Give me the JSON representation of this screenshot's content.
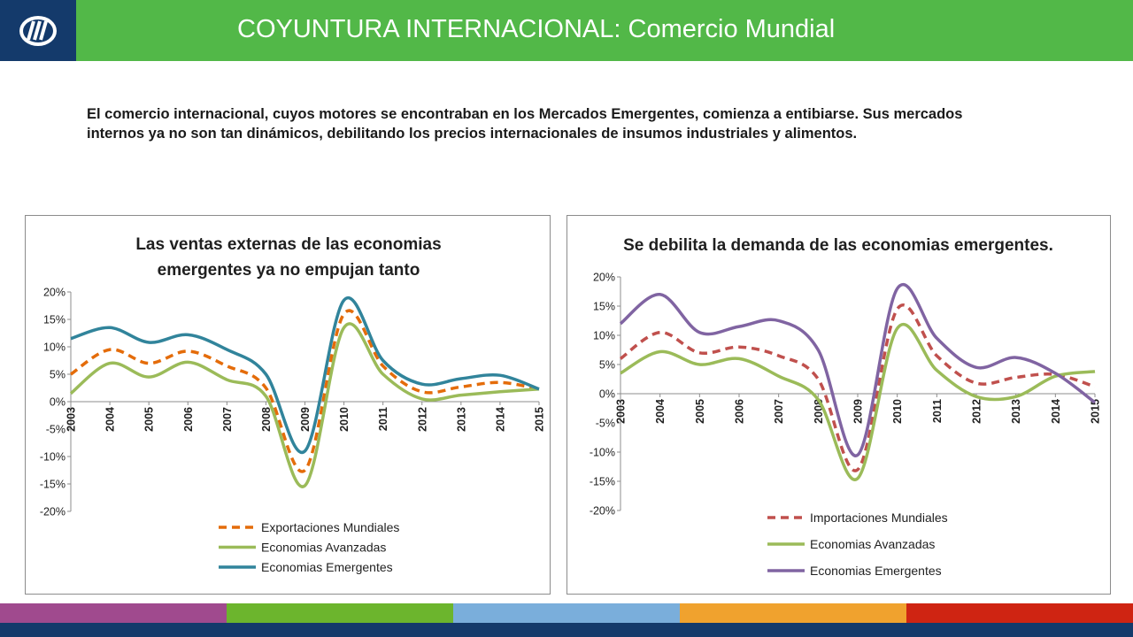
{
  "header": {
    "title": "COYUNTURA INTERNACIONAL: Comercio Mundial",
    "bg_color": "#52b848",
    "logo_bg_color": "#143a6b"
  },
  "intro": "El comercio internacional, cuyos motores se encontraban en los Mercados Emergentes, comienza a entibiarse. Sus mercados internos ya no son tan dinámicos, debilitando los precios internacionales de insumos industriales y alimentos.",
  "footer": {
    "colors": [
      "#a04a8e",
      "#6cb52d",
      "#7aaedb",
      "#f0a22e",
      "#cf2412"
    ],
    "bottom_color": "#143a6b"
  },
  "chart_data": [
    {
      "type": "line",
      "title": "Las ventas externas de las economias emergentes ya no empujan tanto",
      "title_lines": [
        "Las ventas externas de las economias",
        "emergentes ya no empujan tanto"
      ],
      "x": [
        "2003",
        "2004",
        "2005",
        "2006",
        "2007",
        "2008",
        "2009",
        "2010",
        "2011",
        "2012",
        "2013",
        "2014",
        "2015"
      ],
      "ylim": [
        -20,
        20
      ],
      "yticks": [
        "20%",
        "15%",
        "10%",
        "5%",
        "0%",
        "-5%",
        "-10%",
        "-15%",
        "-20%"
      ],
      "legend_position": "bottom",
      "series": [
        {
          "name": "Exportaciones Mundiales",
          "color": "#e46c0a",
          "dash": true,
          "values": [
            5,
            9.5,
            7,
            9.2,
            6.5,
            2.5,
            -12.5,
            16,
            6.5,
            1.8,
            2.7,
            3.5,
            2.3
          ]
        },
        {
          "name": "Economias Avanzadas",
          "color": "#9bbb59",
          "dash": false,
          "values": [
            1.5,
            7,
            4.5,
            7.2,
            4,
            1,
            -15.3,
            13.5,
            5,
            0.5,
            1.2,
            1.8,
            2.3
          ]
        },
        {
          "name": "Economias Emergentes",
          "color": "#31849b",
          "dash": false,
          "values": [
            11.5,
            13.5,
            10.8,
            12.2,
            9.5,
            5,
            -9,
            18.5,
            7.5,
            3.2,
            4.2,
            4.8,
            2.3
          ]
        }
      ]
    },
    {
      "type": "line",
      "title": "Se debilita la demanda de las economias emergentes.",
      "title_lines": [
        "Se debilita la demanda de las economias emergentes."
      ],
      "x": [
        "2003",
        "2004",
        "2005",
        "2006",
        "2007",
        "2008",
        "2009",
        "2010",
        "2011",
        "2012",
        "2013",
        "2014",
        "2015"
      ],
      "ylim": [
        -20,
        20
      ],
      "yticks": [
        "20%",
        "15%",
        "10%",
        "5%",
        "0%",
        "-5%",
        "-10%",
        "-15%",
        "-20%"
      ],
      "legend_position": "bottom",
      "series": [
        {
          "name": "Importaciones Mundiales",
          "color": "#c0504d",
          "dash": true,
          "values": [
            6,
            10.5,
            7,
            8,
            6.5,
            2.5,
            -13,
            14.5,
            6.5,
            1.8,
            2.8,
            3.3,
            1.2
          ]
        },
        {
          "name": "Economias Avanzadas",
          "color": "#9bbb59",
          "dash": false,
          "values": [
            3.5,
            7.2,
            5,
            6,
            3,
            -1,
            -14.5,
            11.2,
            4,
            -0.5,
            -0.5,
            3,
            3.8
          ]
        },
        {
          "name": "Economias Emergentes",
          "color": "#8064a2",
          "dash": false,
          "values": [
            12,
            17,
            10.5,
            11.5,
            12.5,
            7.5,
            -10.5,
            18,
            9.5,
            4.5,
            6.2,
            3.5,
            -1.5
          ]
        }
      ]
    }
  ]
}
